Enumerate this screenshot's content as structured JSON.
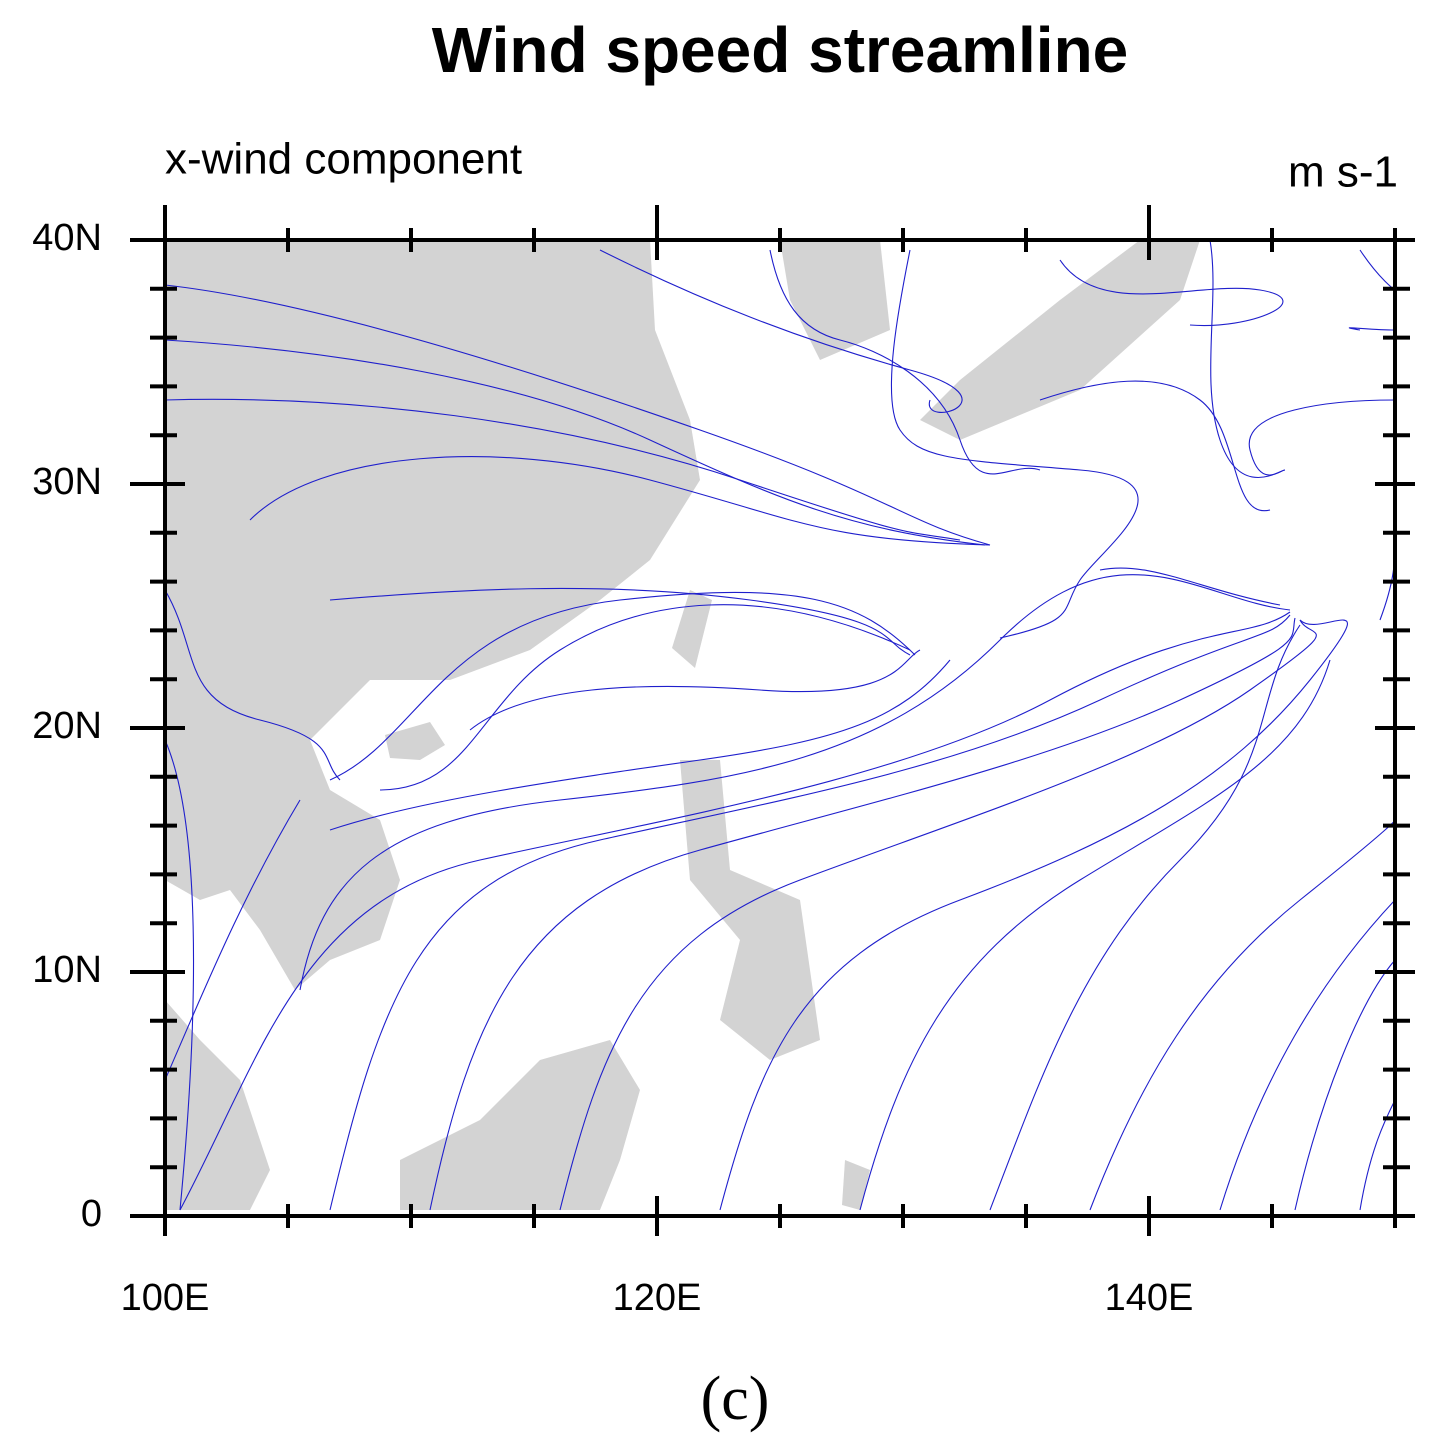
{
  "chart_data": {
    "type": "streamline",
    "title": "Wind speed streamline",
    "subtitle_left": "x-wind component",
    "subtitle_right": "m s-1",
    "caption": "(c)",
    "xlim": [
      100,
      150
    ],
    "ylim": [
      0,
      40
    ],
    "xticks": [
      {
        "value": 100,
        "label": "100E"
      },
      {
        "value": 120,
        "label": "120E"
      },
      {
        "value": 140,
        "label": "140E"
      }
    ],
    "yticks": [
      0,
      {
        "value": 10,
        "label": "10N"
      },
      {
        "value": 20,
        "label": "20N"
      },
      {
        "value": 30,
        "label": "30N"
      },
      {
        "value": 40,
        "label": "40N"
      }
    ],
    "xminorticks": [
      105,
      110,
      115,
      125,
      130,
      135,
      145,
      150
    ],
    "yminorticks": [
      2,
      4,
      6,
      8,
      12,
      14,
      16,
      18,
      22,
      24,
      26,
      28,
      32,
      34,
      36,
      38
    ],
    "line_color": "#1f1fcc",
    "land_color": "#d3d3d3"
  }
}
